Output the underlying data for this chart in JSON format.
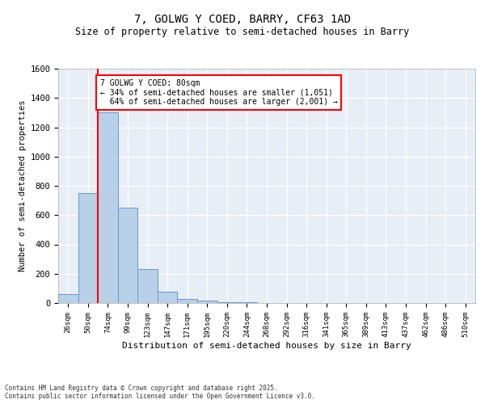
{
  "title": "7, GOLWG Y COED, BARRY, CF63 1AD",
  "subtitle": "Size of property relative to semi-detached houses in Barry",
  "xlabel": "Distribution of semi-detached houses by size in Barry",
  "ylabel": "Number of semi-detached properties",
  "categories": [
    "26sqm",
    "50sqm",
    "74sqm",
    "99sqm",
    "123sqm",
    "147sqm",
    "171sqm",
    "195sqm",
    "220sqm",
    "244sqm",
    "268sqm",
    "292sqm",
    "316sqm",
    "341sqm",
    "365sqm",
    "389sqm",
    "413sqm",
    "437sqm",
    "462sqm",
    "486sqm",
    "510sqm"
  ],
  "values": [
    60,
    750,
    1300,
    650,
    230,
    80,
    30,
    15,
    5,
    3,
    2,
    1,
    1,
    0,
    0,
    0,
    0,
    0,
    0,
    0,
    0
  ],
  "bar_color": "#b8d0e8",
  "bar_edge_color": "#6699cc",
  "property_size": "80sqm",
  "pct_smaller": 34,
  "n_smaller": 1051,
  "pct_larger": 64,
  "n_larger": 2001,
  "ylim": [
    0,
    1600
  ],
  "yticks": [
    0,
    200,
    400,
    600,
    800,
    1000,
    1200,
    1400,
    1600
  ],
  "background_color": "#e8eef5",
  "grid_color": "#ffffff",
  "fig_bg_color": "#ffffff",
  "footer_line1": "Contains HM Land Registry data © Crown copyright and database right 2025.",
  "footer_line2": "Contains public sector information licensed under the Open Government Licence v3.0."
}
